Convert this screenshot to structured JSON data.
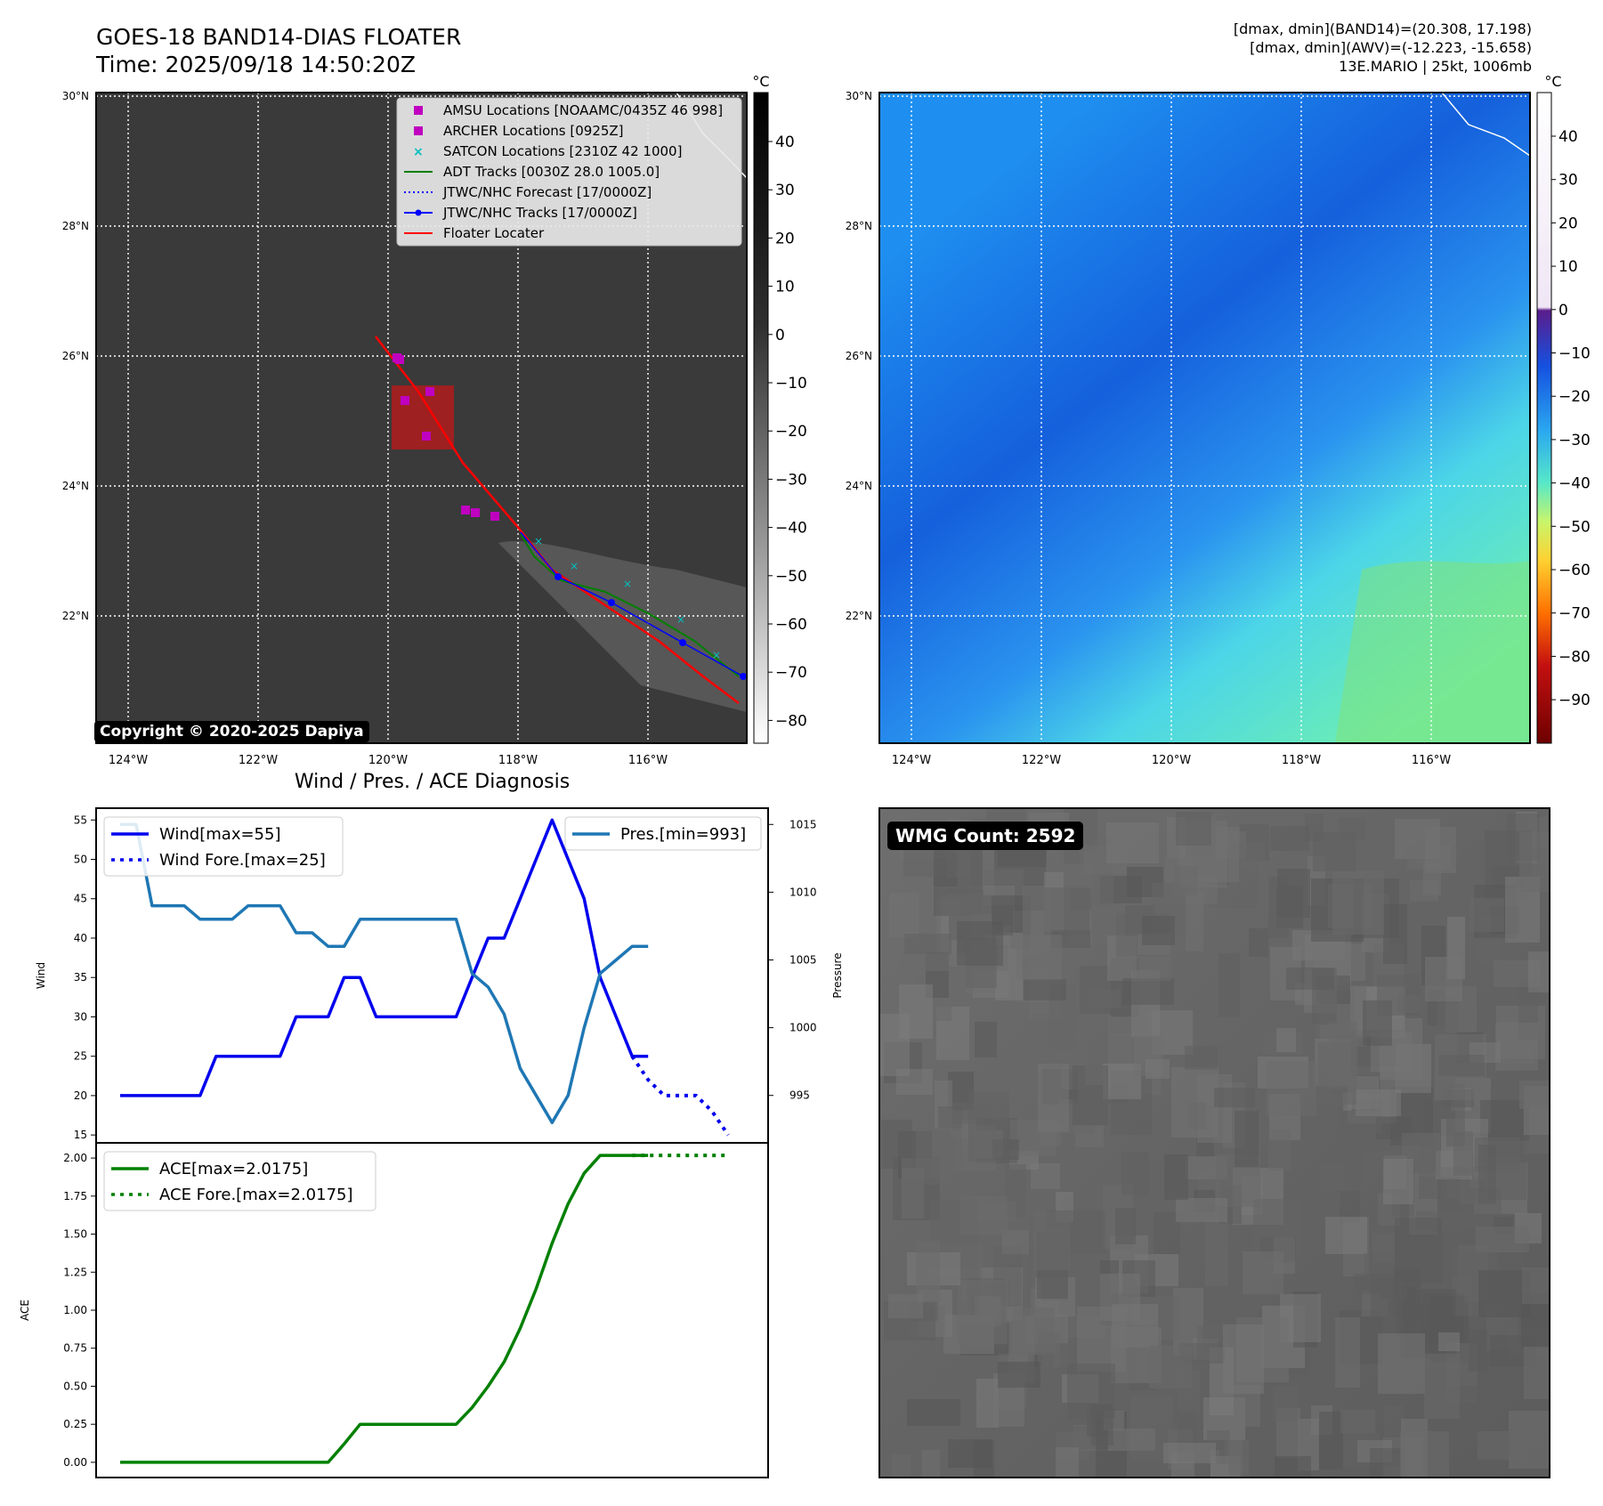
{
  "header": {
    "title_line1": "GOES-18 BAND14-DIAS FLOATER",
    "title_line2": "Time: 2025/09/18 14:50:20Z",
    "info_line1": "[dmax, dmin](BAND14)=(20.308, 17.198)",
    "info_line2": "[dmax, dmin](AWV)=(-12.223, -15.658)",
    "info_line3": "13E.MARIO | 25kt, 1006mb"
  },
  "maps": {
    "lat_labels": [
      "30°N",
      "28°N",
      "26°N",
      "24°N",
      "22°N"
    ],
    "lon_labels": [
      "124°W",
      "122°W",
      "120°W",
      "118°W",
      "116°W"
    ],
    "cbar_unit": "°C",
    "ir_cbar_ticks": [
      "40",
      "30",
      "20",
      "10",
      "0",
      "−10",
      "−20",
      "−30",
      "−40",
      "−50",
      "−60",
      "−70",
      "−80"
    ],
    "wv_cbar_ticks": [
      "40",
      "30",
      "20",
      "10",
      "0",
      "−10",
      "−20",
      "−30",
      "−40",
      "−50",
      "−60",
      "−70",
      "−80",
      "−90"
    ],
    "copyright": "Copyright © 2020-2025 Dapiya",
    "legend": [
      {
        "label": "AMSU Locations [NOAAMC/0435Z 46 998]",
        "color": "#bf00bf",
        "marker": "square"
      },
      {
        "label": "ARCHER Locations [0925Z]",
        "color": "#bf00bf",
        "marker": "square"
      },
      {
        "label": "SATCON Locations [2310Z 42 1000]",
        "color": "#00bfbf",
        "marker": "x"
      },
      {
        "label": "ADT Tracks [0030Z 28.0 1005.0]",
        "color": "#008000",
        "marker": "line"
      },
      {
        "label": "JTWC/NHC Forecast [17/0000Z]",
        "color": "#0000ff",
        "marker": "dotted"
      },
      {
        "label": "JTWC/NHC Tracks [17/0000Z]",
        "color": "#0000ff",
        "marker": "line-dot"
      },
      {
        "label": "Floater Locater",
        "color": "#ff0000",
        "marker": "line"
      }
    ],
    "wmg_label": "WMG Count: 2592"
  },
  "chart_data": [
    {
      "type": "line",
      "title": "Wind / Pres. / ACE Diagnosis",
      "ylabel": "Wind",
      "y2label": "Pressure",
      "ylim": [
        14,
        56.5
      ],
      "y2lim": [
        991.5,
        1016.2
      ],
      "yticks": [
        "15",
        "20",
        "25",
        "30",
        "35",
        "40",
        "45",
        "50",
        "55"
      ],
      "y2ticks": [
        "995",
        "1000",
        "1005",
        "1010",
        "1015"
      ],
      "series": [
        {
          "name": "Wind[max=55]",
          "style": "solid",
          "color": "#0000ee",
          "axis": "left",
          "x": [
            0,
            1,
            2,
            3,
            4,
            5,
            6,
            7,
            8,
            9,
            10,
            11,
            12,
            13,
            14,
            15,
            16,
            17,
            18,
            19,
            20,
            21,
            22,
            23,
            24,
            25,
            26,
            27,
            28,
            29,
            30,
            31,
            32,
            33
          ],
          "values": [
            20,
            20,
            20,
            20,
            20,
            20,
            25,
            25,
            25,
            25,
            25,
            30,
            30,
            30,
            35,
            35,
            30,
            30,
            30,
            30,
            30,
            30,
            35,
            40,
            40,
            45,
            50,
            55,
            50,
            45,
            35,
            30,
            25,
            25
          ]
        },
        {
          "name": "Wind Fore.[max=25]",
          "style": "dotted",
          "color": "#0000ee",
          "axis": "left",
          "x": [
            32,
            33,
            34,
            35,
            36,
            37,
            38
          ],
          "values": [
            25,
            22,
            20,
            20,
            20,
            18,
            15
          ]
        },
        {
          "name": "Pres.[min=993]",
          "style": "solid",
          "color": "#1f77b4",
          "axis": "right",
          "x": [
            0,
            1,
            2,
            3,
            4,
            5,
            6,
            7,
            8,
            9,
            10,
            11,
            12,
            13,
            14,
            15,
            16,
            17,
            18,
            19,
            20,
            21,
            22,
            23,
            24,
            25,
            26,
            27,
            28,
            29,
            30,
            31,
            32,
            33
          ],
          "values": [
            1015,
            1015,
            1009,
            1009,
            1009,
            1008,
            1008,
            1008,
            1009,
            1009,
            1009,
            1007,
            1007,
            1006,
            1006,
            1008,
            1008,
            1008,
            1008,
            1008,
            1008,
            1008,
            1004,
            1003,
            1001,
            997,
            995,
            993,
            995,
            1000,
            1004,
            1005,
            1006,
            1006
          ]
        }
      ]
    },
    {
      "type": "line",
      "ylabel": "ACE",
      "ylim": [
        -0.1,
        2.1
      ],
      "yticks": [
        "0.00",
        "0.25",
        "0.50",
        "0.75",
        "1.00",
        "1.25",
        "1.50",
        "1.75",
        "2.00"
      ],
      "series": [
        {
          "name": "ACE[max=2.0175]",
          "style": "solid",
          "color": "#008000",
          "x": [
            0,
            1,
            2,
            3,
            4,
            5,
            6,
            7,
            8,
            9,
            10,
            11,
            12,
            13,
            14,
            15,
            16,
            17,
            18,
            19,
            20,
            21,
            22,
            23,
            24,
            25,
            26,
            27,
            28,
            29,
            30,
            31,
            32,
            33
          ],
          "values": [
            0,
            0,
            0,
            0,
            0,
            0,
            0,
            0,
            0,
            0,
            0,
            0,
            0,
            0,
            0.12,
            0.25,
            0.25,
            0.25,
            0.25,
            0.25,
            0.25,
            0.25,
            0.36,
            0.5,
            0.66,
            0.88,
            1.14,
            1.44,
            1.7,
            1.9,
            2.0175,
            2.0175,
            2.0175,
            2.0175
          ]
        },
        {
          "name": "ACE Fore.[max=2.0175]",
          "style": "dotted",
          "color": "#008000",
          "x": [
            32,
            33,
            34,
            35,
            36,
            37,
            38
          ],
          "values": [
            2.0175,
            2.0175,
            2.0175,
            2.0175,
            2.0175,
            2.0175,
            2.0175
          ]
        }
      ]
    }
  ]
}
